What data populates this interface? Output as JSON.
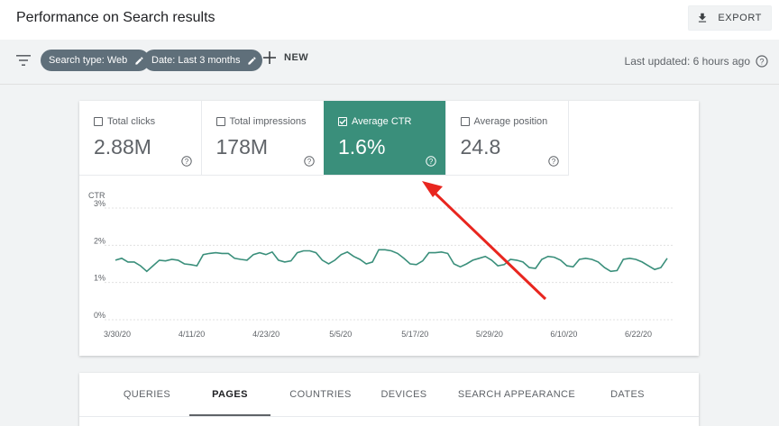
{
  "header": {
    "title": "Performance on Search results",
    "export_label": "EXPORT"
  },
  "filters": {
    "search_type": "Search type: Web",
    "date": "Date: Last 3 months",
    "new_label": "NEW",
    "last_updated": "Last updated: 6 hours ago"
  },
  "metrics": [
    {
      "label": "Total clicks",
      "value": "2.88M",
      "checked": false
    },
    {
      "label": "Total impressions",
      "value": "178M",
      "checked": false
    },
    {
      "label": "Average CTR",
      "value": "1.6%",
      "checked": true
    },
    {
      "label": "Average position",
      "value": "24.8",
      "checked": false
    }
  ],
  "colors": {
    "selected_metric": "#3a8f7b",
    "ctr_line": "#3a8f7b",
    "annotation_arrow": "#e8261f"
  },
  "chart_data": {
    "type": "line",
    "ylabel": "CTR",
    "yticks": [
      "3%",
      "2%",
      "1%",
      "0%"
    ],
    "ylim": [
      0,
      3
    ],
    "grid": true,
    "x_tick_labels": [
      "3/30/20",
      "4/11/20",
      "4/23/20",
      "5/5/20",
      "5/17/20",
      "5/29/20",
      "6/10/20",
      "6/22/20"
    ],
    "series": [
      {
        "values": [
          1.6,
          1.65,
          1.55,
          1.55,
          1.45,
          1.3,
          1.45,
          1.6,
          1.58,
          1.62,
          1.6,
          1.5,
          1.48,
          1.45,
          1.75,
          1.78,
          1.8,
          1.78,
          1.78,
          1.65,
          1.62,
          1.6,
          1.75,
          1.8,
          1.75,
          1.82,
          1.6,
          1.55,
          1.58,
          1.8,
          1.85,
          1.85,
          1.8,
          1.6,
          1.5,
          1.6,
          1.75,
          1.82,
          1.7,
          1.62,
          1.5,
          1.55,
          1.88,
          1.88,
          1.85,
          1.78,
          1.65,
          1.5,
          1.48,
          1.58,
          1.8,
          1.8,
          1.82,
          1.78,
          1.5,
          1.42,
          1.5,
          1.6,
          1.65,
          1.7,
          1.6,
          1.45,
          1.48,
          1.62,
          1.6,
          1.55,
          1.4,
          1.38,
          1.62,
          1.7,
          1.68,
          1.6,
          1.45,
          1.42,
          1.62,
          1.65,
          1.62,
          1.55,
          1.4,
          1.3,
          1.32,
          1.62,
          1.65,
          1.62,
          1.55,
          1.45,
          1.35,
          1.4,
          1.65
        ]
      }
    ]
  },
  "tabs": [
    {
      "label": "QUERIES",
      "active": false
    },
    {
      "label": "PAGES",
      "active": true
    },
    {
      "label": "COUNTRIES",
      "active": false
    },
    {
      "label": "DEVICES",
      "active": false
    },
    {
      "label": "SEARCH APPEARANCE",
      "active": false
    },
    {
      "label": "DATES",
      "active": false
    }
  ]
}
